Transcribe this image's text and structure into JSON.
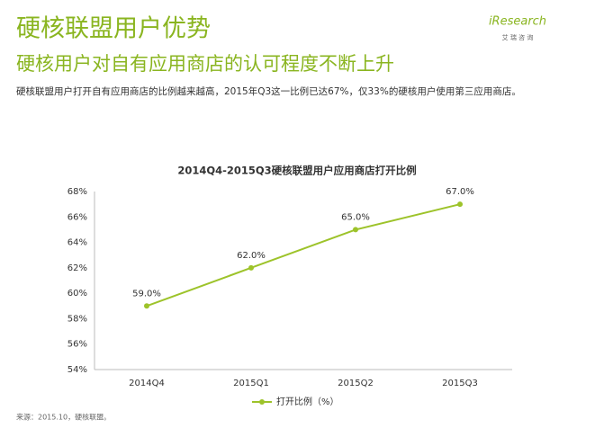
{
  "header": {
    "title": "硬核联盟用户优势",
    "subtitle": "硬核用户对自有应用商店的认可程度不断上升",
    "description": "硬核联盟用户打开自有应用商店的比例越来越高，2015年Q3这一比例已达67%，仅33%的硬核用户使用第三应用商店。"
  },
  "logo": {
    "brand": "iResearch",
    "tagline": "艾 瑞 咨 询"
  },
  "source": "来源：2015.10，硬核联盟。",
  "chart_data": {
    "type": "line",
    "title": "2014Q4-2015Q3硬核联盟用户应用商店打开比例",
    "categories": [
      "2014Q4",
      "2015Q1",
      "2015Q2",
      "2015Q3"
    ],
    "series": [
      {
        "name": "打开比例（%）",
        "color": "#9dc32a",
        "values": [
          59,
          62,
          65,
          67
        ],
        "value_labels": [
          "59.0%",
          "62.0%",
          "65.0%",
          "67.0%"
        ]
      }
    ],
    "ylim": [
      54,
      68
    ],
    "yticks": [
      {
        "value": 54,
        "label": "54%"
      },
      {
        "value": 56,
        "label": "56%"
      },
      {
        "value": 58,
        "label": "58%"
      },
      {
        "value": 60,
        "label": "60%"
      },
      {
        "value": 62,
        "label": "62%"
      },
      {
        "value": 64,
        "label": "64%"
      },
      {
        "value": 66,
        "label": "66%"
      },
      {
        "value": 68,
        "label": "68%"
      }
    ],
    "legend": "bottom"
  }
}
